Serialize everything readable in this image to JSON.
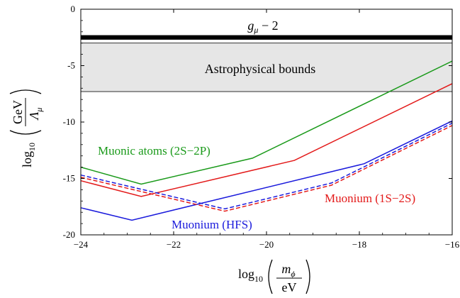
{
  "chart_data": {
    "type": "line",
    "xlabel": {
      "prefix": "log",
      "sub": "10",
      "num_main": "m",
      "num_sub": "ϕ",
      "den": "eV"
    },
    "ylabel": {
      "prefix": "log",
      "sub": "10",
      "num": "GeV",
      "den_main": "Λ",
      "den_sub": "μ"
    },
    "xlim": [
      -24,
      -16
    ],
    "ylim": [
      -20,
      0
    ],
    "xticks": [
      {
        "value": -24,
        "label": "−24"
      },
      {
        "value": -22,
        "label": "−22"
      },
      {
        "value": -20,
        "label": "−20"
      },
      {
        "value": -18,
        "label": "−18"
      },
      {
        "value": -16,
        "label": "−16"
      }
    ],
    "yticks": [
      {
        "value": 0,
        "label": "0"
      },
      {
        "value": -5,
        "label": "-5"
      },
      {
        "value": -10,
        "label": "-10"
      },
      {
        "value": -15,
        "label": "-15"
      },
      {
        "value": -20,
        "label": "-20"
      }
    ],
    "bands": [
      {
        "name": "g-2",
        "y_from": -2.3,
        "y_to": -2.7,
        "color": "#000000"
      },
      {
        "name": "astro",
        "y_from": -3.0,
        "y_to": -7.3,
        "color": "#e6e6e6"
      }
    ],
    "band_labels": {
      "g2": {
        "main": "g",
        "sub": "μ",
        "rest": " − 2"
      },
      "astro": "Astrophysical bounds"
    },
    "series": [
      {
        "key": "atoms",
        "color": "#1a9a1a",
        "dash": false,
        "x": [
          -24,
          -22.7,
          -20.3,
          -16
        ],
        "y": [
          -14.0,
          -15.5,
          -13.2,
          -4.6
        ]
      },
      {
        "key": "muonium_1s2s",
        "color": "#e31a1a",
        "dash": false,
        "x": [
          -24,
          -22.7,
          -19.4,
          -16
        ],
        "y": [
          -15.2,
          -16.6,
          -13.4,
          -6.6
        ]
      },
      {
        "key": "hfs",
        "color": "#1a1adc",
        "dash": false,
        "x": [
          -24,
          -22.9,
          -17.9,
          -16
        ],
        "y": [
          -17.6,
          -18.7,
          -13.7,
          -9.9
        ]
      },
      {
        "key": "dash_red",
        "color": "#e31a1a",
        "dash": true,
        "x": [
          -24,
          -20.9,
          -18.6,
          -16
        ],
        "y": [
          -14.9,
          -17.9,
          -15.6,
          -10.3
        ]
      },
      {
        "key": "dash_blue",
        "color": "#1a1adc",
        "dash": true,
        "x": [
          -24,
          -20.9,
          -18.6,
          -16
        ],
        "y": [
          -14.7,
          -17.7,
          -15.4,
          -10.1
        ]
      }
    ],
    "annotations": [
      {
        "key": "atoms",
        "text": "Muonic atoms (2S−2P)",
        "color": "#1a9a1a"
      },
      {
        "key": "muonium_1s2s",
        "text": "Muonium (1S−2S)",
        "color": "#e31a1a"
      },
      {
        "key": "hfs",
        "text": "Muonium (HFS)",
        "color": "#1a1adc"
      }
    ]
  }
}
